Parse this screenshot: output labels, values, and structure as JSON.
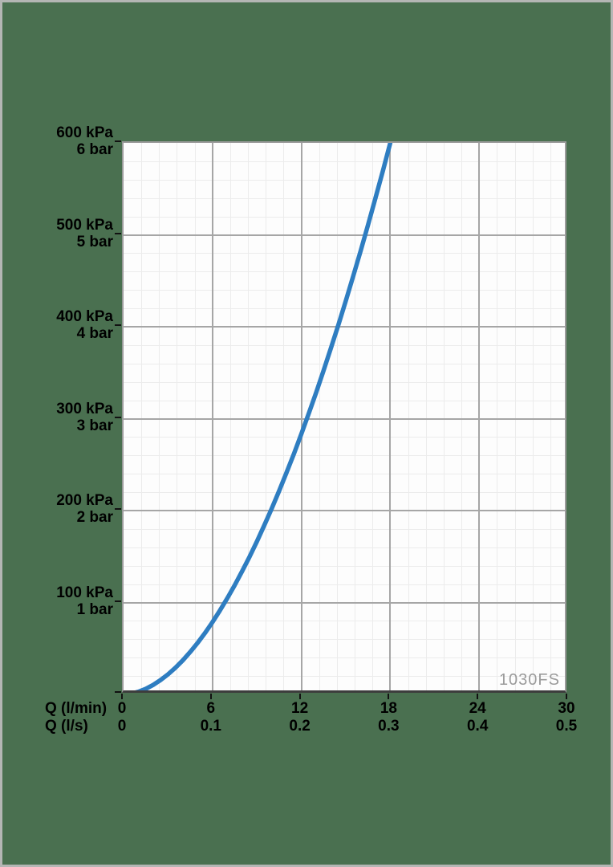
{
  "colors": {
    "background": "#4a7050",
    "frame_border": "#b4b6b4",
    "plot_background": "#fdfdfd",
    "grid_minor": "#ececec",
    "grid_major": "#a6a6a6",
    "plot_border": "#9b9b9b",
    "axis_bottom": "#3d3d3d",
    "tick": "#111111",
    "curve": "#2e7dc1",
    "watermark_text": "#9b9b9b",
    "label_text": "#000000"
  },
  "chart_data": {
    "type": "line",
    "watermark": "1030FS",
    "grid": "on, 5 minor divisions per major division on both axes",
    "legend_position": "none",
    "x_axis": {
      "min": 0,
      "max": 30,
      "major_step": 6,
      "minor_step": 1.2,
      "rows": [
        {
          "label": "Q (l/min)",
          "tick_values": [
            0,
            6,
            12,
            18,
            24,
            30
          ],
          "tick_labels": [
            "0",
            "6",
            "12",
            "18",
            "24",
            "30"
          ]
        },
        {
          "label": "Q (l/s)",
          "tick_values": [
            0,
            6,
            12,
            18,
            24,
            30
          ],
          "tick_labels": [
            "0",
            "0.1",
            "0.2",
            "0.3",
            "0.4",
            "0.5"
          ]
        }
      ]
    },
    "y_axis": {
      "min": 0,
      "max": 600,
      "major_step": 100,
      "minor_step": 20,
      "tick_labels": [
        {
          "value": 600,
          "kpa": "600 kPa",
          "bar": "6 bar"
        },
        {
          "value": 500,
          "kpa": "500 kPa",
          "bar": "5 bar"
        },
        {
          "value": 400,
          "kpa": "400 kPa",
          "bar": "4 bar"
        },
        {
          "value": 300,
          "kpa": "300 kPa",
          "bar": "3 bar"
        },
        {
          "value": 200,
          "kpa": "200 kPa",
          "bar": "2 bar"
        },
        {
          "value": 100,
          "kpa": "100 kPa",
          "bar": "1 bar"
        }
      ]
    },
    "series": [
      {
        "name": "pressure-drop-curve",
        "color": "#2e7dc1",
        "stroke_width": 5.5,
        "points_q_lmin_dp_kpa": [
          [
            0,
            0
          ],
          [
            0.5,
            0.8
          ],
          [
            1,
            2.9
          ],
          [
            1.5,
            6.0
          ],
          [
            2,
            10.3
          ],
          [
            2.5,
            15.6
          ],
          [
            3,
            21.8
          ],
          [
            3.5,
            29.0
          ],
          [
            4,
            37.1
          ],
          [
            4.5,
            46.2
          ],
          [
            5,
            56.1
          ],
          [
            5.5,
            66.9
          ],
          [
            6,
            78.6
          ],
          [
            6.5,
            91.2
          ],
          [
            7,
            104.6
          ],
          [
            7.5,
            118.8
          ],
          [
            8,
            133.9
          ],
          [
            8.5,
            149.7
          ],
          [
            9,
            166.4
          ],
          [
            9.5,
            184.0
          ],
          [
            10,
            202.3
          ],
          [
            10.5,
            221.4
          ],
          [
            11,
            241.3
          ],
          [
            11.5,
            261.9
          ],
          [
            12,
            283.4
          ],
          [
            12.5,
            305.6
          ],
          [
            13,
            328.6
          ],
          [
            13.5,
            352.4
          ],
          [
            14,
            376.9
          ],
          [
            14.5,
            402.2
          ],
          [
            15,
            428.2
          ],
          [
            15.5,
            455.0
          ],
          [
            16,
            482.5
          ],
          [
            16.5,
            510.8
          ],
          [
            17,
            539.8
          ],
          [
            17.5,
            569.5
          ],
          [
            18,
            600
          ]
        ]
      }
    ]
  }
}
